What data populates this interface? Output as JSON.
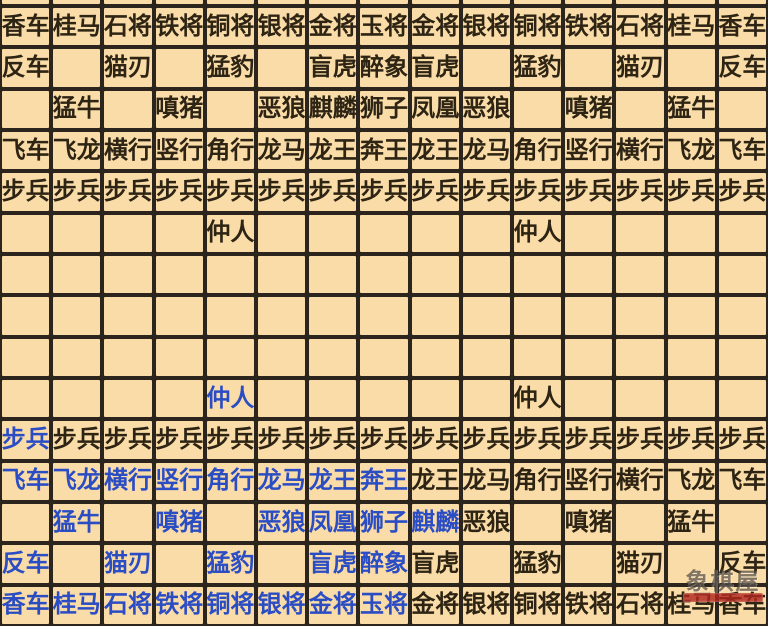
{
  "colors": {
    "cell_bg": "#fadca8",
    "grid": "#2b251d",
    "piece_dark": "#2e2414",
    "piece_link": "#2b4dc4",
    "watermark_band": "#b0261e"
  },
  "watermark": {
    "text": "象棋屋"
  },
  "board": {
    "columns": 15,
    "visible_rows": 15,
    "rows": [
      {
        "cells": [
          "香车",
          "桂马",
          "石将",
          "铁将",
          "铜将",
          "银将",
          "金将",
          "玉将",
          "金将",
          "银将",
          "铜将",
          "铁将",
          "石将",
          "桂马",
          "香车"
        ],
        "link_cols": []
      },
      {
        "cells": [
          "反车",
          "",
          "猫刃",
          "",
          "猛豹",
          "",
          "盲虎",
          "醉象",
          "盲虎",
          "",
          "猛豹",
          "",
          "猫刃",
          "",
          "反车"
        ],
        "link_cols": []
      },
      {
        "cells": [
          "",
          "猛牛",
          "",
          "嗔猪",
          "",
          "恶狼",
          "麒麟",
          "狮子",
          "凤凰",
          "恶狼",
          "",
          "嗔猪",
          "",
          "猛牛",
          ""
        ],
        "link_cols": []
      },
      {
        "cells": [
          "飞车",
          "飞龙",
          "横行",
          "竖行",
          "角行",
          "龙马",
          "龙王",
          "奔王",
          "龙王",
          "龙马",
          "角行",
          "竖行",
          "横行",
          "飞龙",
          "飞车"
        ],
        "link_cols": []
      },
      {
        "cells": [
          "步兵",
          "步兵",
          "步兵",
          "步兵",
          "步兵",
          "步兵",
          "步兵",
          "步兵",
          "步兵",
          "步兵",
          "步兵",
          "步兵",
          "步兵",
          "步兵",
          "步兵"
        ],
        "link_cols": []
      },
      {
        "cells": [
          "",
          "",
          "",
          "",
          "仲人",
          "",
          "",
          "",
          "",
          "",
          "仲人",
          "",
          "",
          "",
          ""
        ],
        "link_cols": []
      },
      {
        "cells": [
          "",
          "",
          "",
          "",
          "",
          "",
          "",
          "",
          "",
          "",
          "",
          "",
          "",
          "",
          ""
        ],
        "link_cols": []
      },
      {
        "cells": [
          "",
          "",
          "",
          "",
          "",
          "",
          "",
          "",
          "",
          "",
          "",
          "",
          "",
          "",
          ""
        ],
        "link_cols": []
      },
      {
        "cells": [
          "",
          "",
          "",
          "",
          "",
          "",
          "",
          "",
          "",
          "",
          "",
          "",
          "",
          "",
          ""
        ],
        "link_cols": []
      },
      {
        "cells": [
          "",
          "",
          "",
          "",
          "仲人",
          "",
          "",
          "",
          "",
          "",
          "仲人",
          "",
          "",
          "",
          ""
        ],
        "link_cols": [
          5
        ]
      },
      {
        "cells": [
          "步兵",
          "步兵",
          "步兵",
          "步兵",
          "步兵",
          "步兵",
          "步兵",
          "步兵",
          "步兵",
          "步兵",
          "步兵",
          "步兵",
          "步兵",
          "步兵",
          "步兵"
        ],
        "link_cols": [
          1
        ]
      },
      {
        "cells": [
          "飞车",
          "飞龙",
          "横行",
          "竖行",
          "角行",
          "龙马",
          "龙王",
          "奔王",
          "龙王",
          "龙马",
          "角行",
          "竖行",
          "横行",
          "飞龙",
          "飞车"
        ],
        "link_cols": [
          1,
          2,
          3,
          4,
          5,
          6,
          7,
          8
        ]
      },
      {
        "cells": [
          "",
          "猛牛",
          "",
          "嗔猪",
          "",
          "恶狼",
          "凤凰",
          "狮子",
          "麒麟",
          "恶狼",
          "",
          "嗔猪",
          "",
          "猛牛",
          ""
        ],
        "link_cols": [
          2,
          4,
          6,
          7,
          8,
          9
        ]
      },
      {
        "cells": [
          "反车",
          "",
          "猫刃",
          "",
          "猛豹",
          "",
          "盲虎",
          "醉象",
          "盲虎",
          "",
          "猛豹",
          "",
          "猫刃",
          "",
          "反车"
        ],
        "link_cols": [
          1,
          3,
          5,
          7,
          8
        ]
      },
      {
        "cells": [
          "香车",
          "桂马",
          "石将",
          "铁将",
          "铜将",
          "银将",
          "金将",
          "玉将",
          "金将",
          "银将",
          "铜将",
          "铁将",
          "石将",
          "桂马",
          "香车"
        ],
        "link_cols": [
          1,
          2,
          3,
          4,
          5,
          6,
          7,
          8
        ]
      }
    ]
  }
}
